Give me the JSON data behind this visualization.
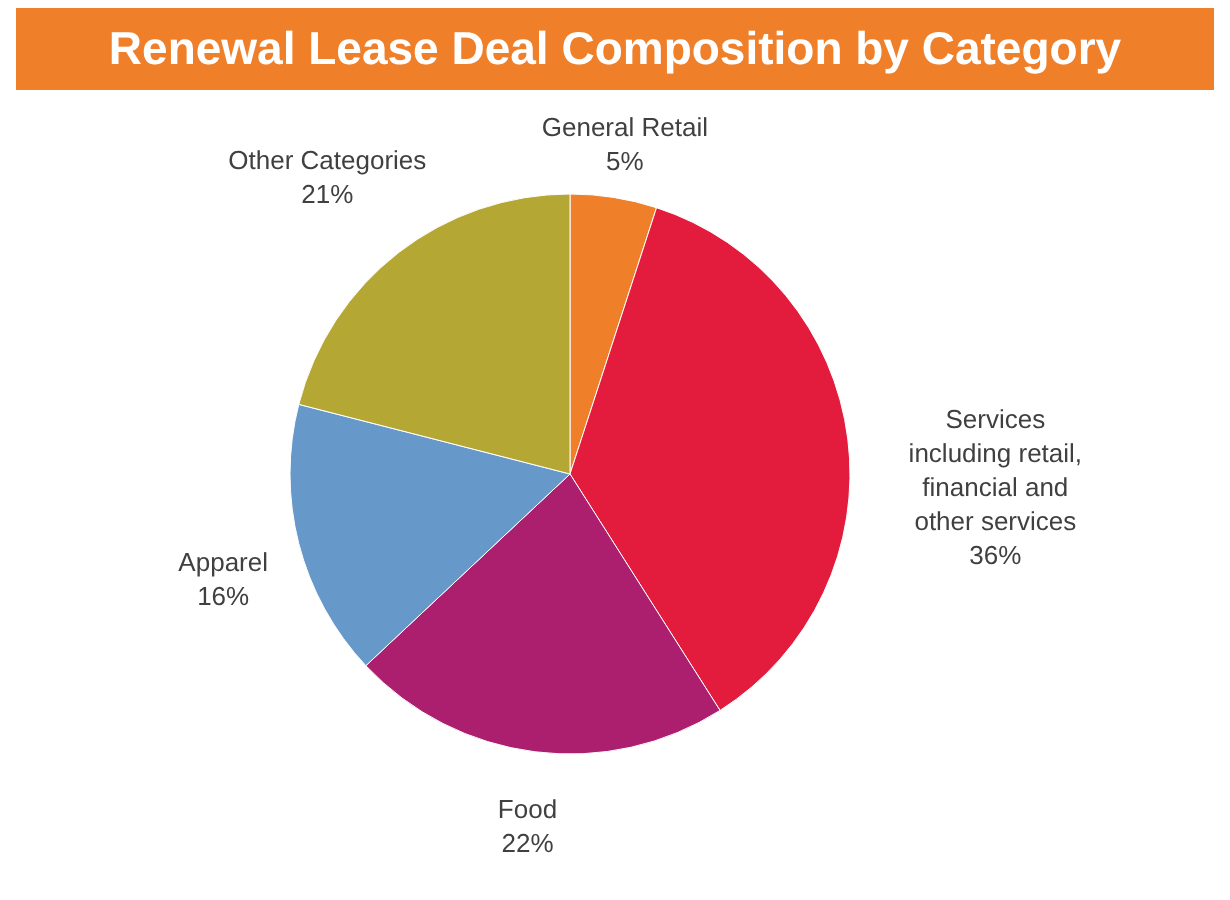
{
  "chart_data": {
    "type": "pie",
    "title": "Renewal Lease Deal Composition by Category",
    "categories": [
      "General Retail",
      "Services including retail, financial and other services",
      "Food",
      "Apparel",
      "Other Categories"
    ],
    "values": [
      5,
      36,
      22,
      16,
      21
    ],
    "colors": [
      "#f07f2a",
      "#e31c3d",
      "#ab1f6e",
      "#6699c9",
      "#b5a733"
    ],
    "value_labels": [
      "5%",
      "36%",
      "22%",
      "16%",
      "21%"
    ],
    "legend": false
  }
}
